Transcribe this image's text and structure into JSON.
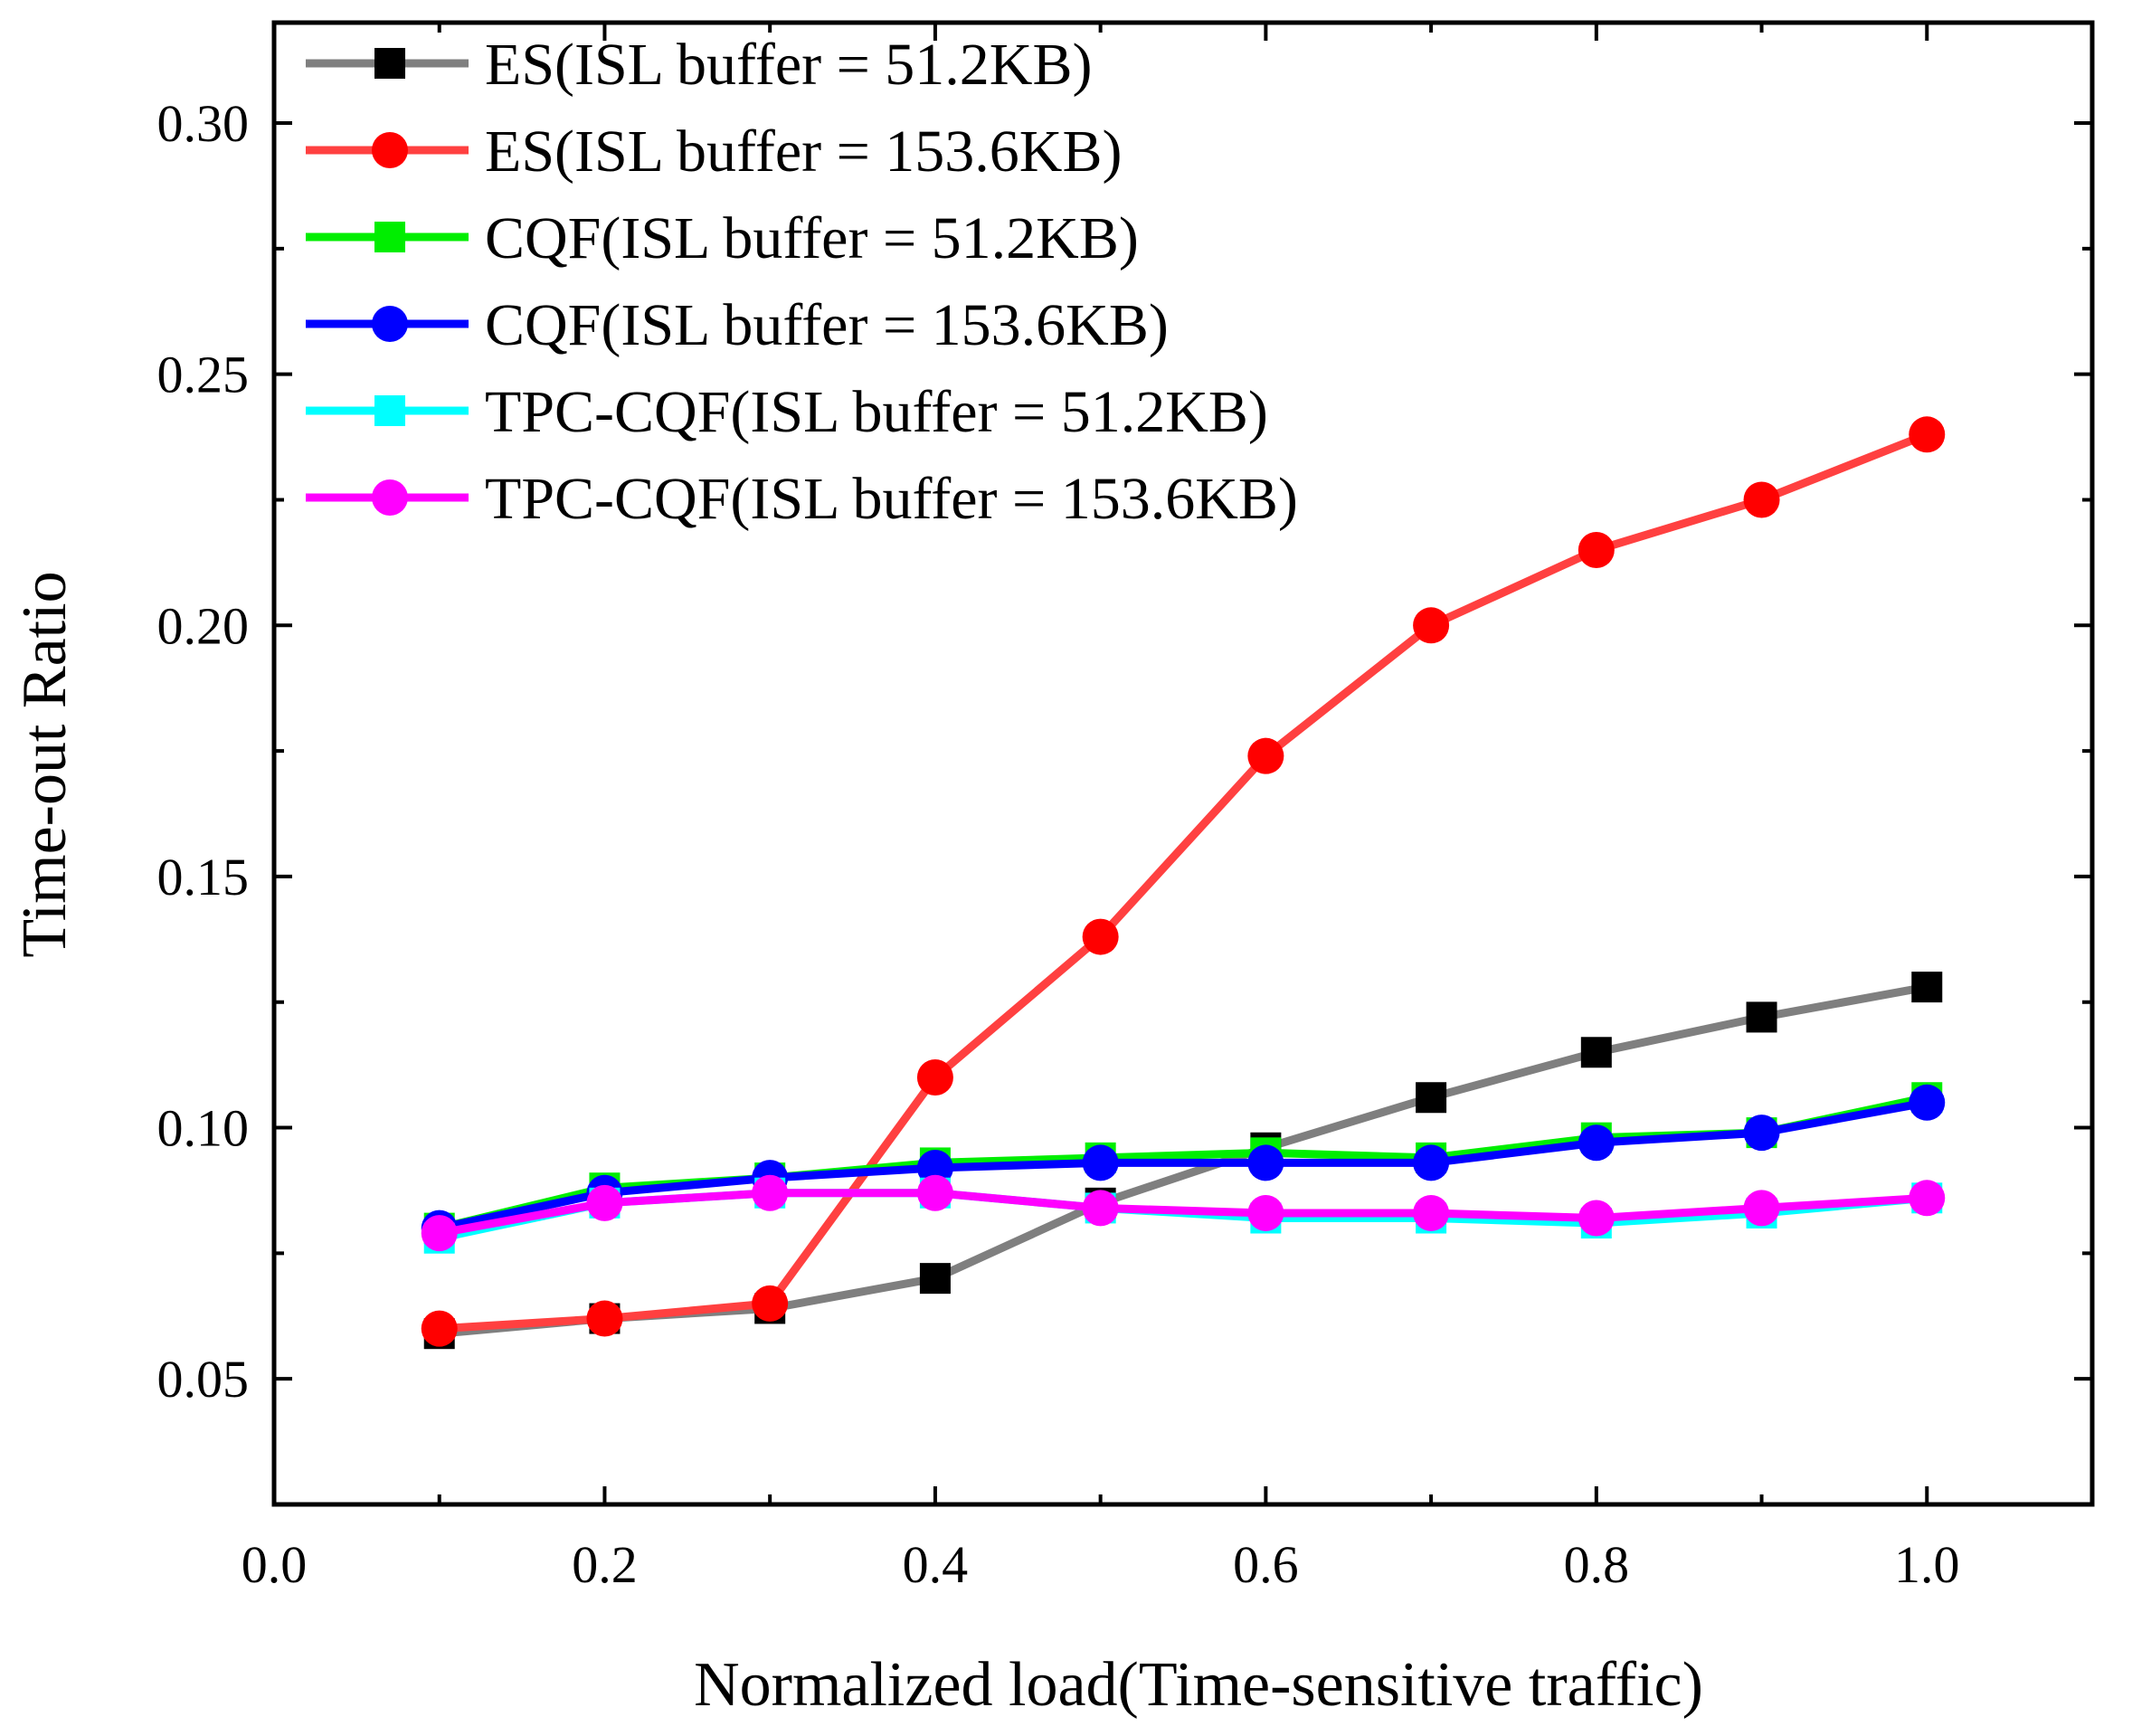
{
  "chart_data": {
    "type": "line",
    "title": "",
    "xlabel": "Normalized load(Time-sensitive traffic)",
    "ylabel": "Time-out Ratio",
    "xlim": [
      0.0,
      1.1
    ],
    "ylim": [
      0.025,
      0.32
    ],
    "xticks": [
      0.0,
      0.2,
      0.4,
      0.6,
      0.8,
      1.0
    ],
    "xtick_labels": [
      "0.0",
      "0.2",
      "0.4",
      "0.6",
      "0.8",
      "1.0"
    ],
    "yticks": [
      0.05,
      0.1,
      0.15,
      0.2,
      0.25,
      0.3
    ],
    "ytick_labels": [
      "0.05",
      "0.10",
      "0.15",
      "0.20",
      "0.25",
      "0.30"
    ],
    "grid": false,
    "legend_position": "top-left",
    "x": [
      0.1,
      0.2,
      0.3,
      0.4,
      0.5,
      0.6,
      0.7,
      0.8,
      0.9,
      1.0
    ],
    "series": [
      {
        "name": "ES(ISL buffer = 51.2KB)",
        "color": "#7f7f7f",
        "marker_color": "#000000",
        "marker": "square",
        "values": [
          0.059,
          0.062,
          0.064,
          0.07,
          0.085,
          0.096,
          0.106,
          0.115,
          0.122,
          0.128
        ]
      },
      {
        "name": "ES(ISL buffer = 153.6KB)",
        "color": "#ff4040",
        "marker_color": "#ff0000",
        "marker": "circle",
        "values": [
          0.06,
          0.062,
          0.065,
          0.11,
          0.138,
          0.174,
          0.2,
          0.215,
          0.225,
          0.238
        ]
      },
      {
        "name": "CQF(ISL buffer = 51.2KB)",
        "color": "#00ee00",
        "marker_color": "#00ee00",
        "marker": "square",
        "values": [
          0.08,
          0.088,
          0.09,
          0.093,
          0.094,
          0.095,
          0.094,
          0.098,
          0.099,
          0.106
        ]
      },
      {
        "name": "CQF(ISL buffer = 153.6KB)",
        "color": "#0000ff",
        "marker_color": "#0000ff",
        "marker": "circle",
        "values": [
          0.08,
          0.087,
          0.09,
          0.092,
          0.093,
          0.093,
          0.093,
          0.097,
          0.099,
          0.105
        ]
      },
      {
        "name": "TPC-CQF(ISL buffer = 51.2KB)",
        "color": "#00ffff",
        "marker_color": "#00ffff",
        "marker": "square",
        "values": [
          0.078,
          0.085,
          0.087,
          0.087,
          0.084,
          0.082,
          0.082,
          0.081,
          0.083,
          0.086
        ]
      },
      {
        "name": "TPC-CQF(ISL buffer = 153.6KB)",
        "color": "#ff00ff",
        "marker_color": "#ff00ff",
        "marker": "circle",
        "values": [
          0.079,
          0.085,
          0.087,
          0.087,
          0.084,
          0.083,
          0.083,
          0.082,
          0.084,
          0.086
        ]
      }
    ]
  }
}
